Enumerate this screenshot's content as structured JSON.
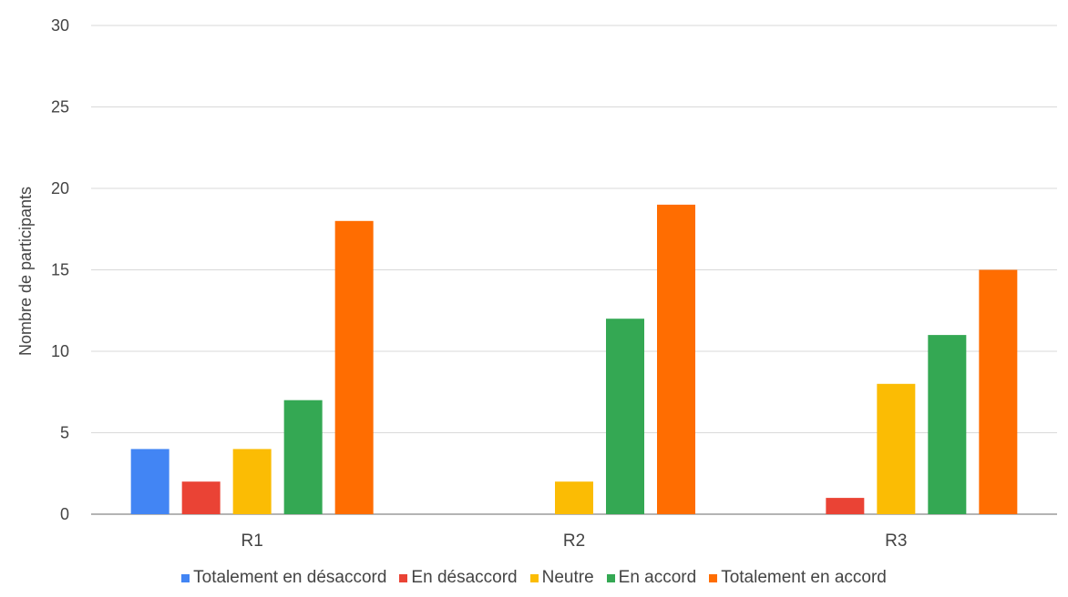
{
  "chart_data": {
    "type": "bar",
    "title": "",
    "xlabel": "",
    "ylabel": "Nombre de participants",
    "ylim": [
      0,
      30
    ],
    "yticks": [
      0,
      5,
      10,
      15,
      20,
      25,
      30
    ],
    "grid": true,
    "legend_position": "bottom",
    "categories": [
      "R1",
      "R2",
      "R3"
    ],
    "series": [
      {
        "name": "Totalement en désaccord",
        "color": "#4285f4",
        "values": [
          4,
          0,
          0
        ]
      },
      {
        "name": "En désaccord",
        "color": "#ea4335",
        "values": [
          2,
          0,
          1
        ]
      },
      {
        "name": "Neutre",
        "color": "#fbbc04",
        "values": [
          4,
          2,
          8
        ]
      },
      {
        "name": "En accord",
        "color": "#34a853",
        "values": [
          7,
          12,
          11
        ]
      },
      {
        "name": "Totalement en accord",
        "color": "#ff6d01",
        "values": [
          18,
          19,
          15
        ]
      }
    ]
  }
}
